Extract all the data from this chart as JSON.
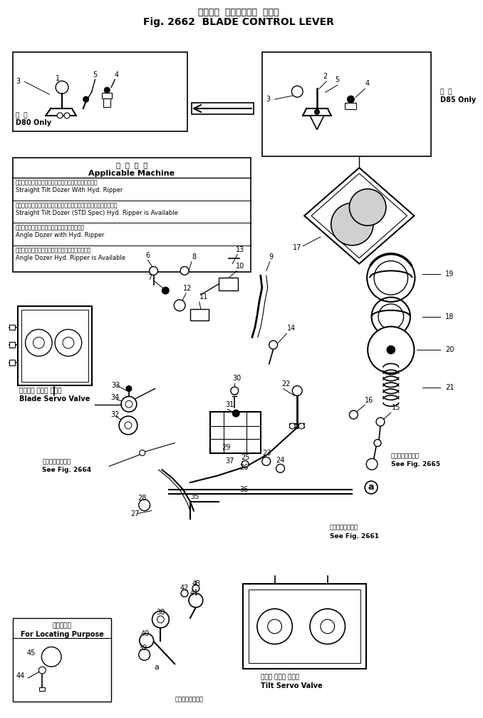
{
  "title_jp": "ブレード  コントロール  レバー",
  "title_en": "Fig. 2662  BLADE CONTROL LEVER",
  "bg_color": "#ffffff",
  "fig_width": 6.78,
  "fig_height": 10.06,
  "dpi": 100,
  "app_header_jp": "適  用  機  種",
  "app_header_en": "Applicable Machine",
  "app_rows": [
    [
      "ストレートチルトドーザハイドロリックリッパー装着車",
      "Straight Tilt Dozer With Hyd. Ripper"
    ],
    [
      "ストレートチルトドーザ標準仕様ハイドロリックリッパー適用可能車",
      "Straight Tilt Dozer (STD.Spec) Hyd. Ripper is Available"
    ],
    [
      "アングルドーザハイドロリックリッパー装着車",
      "Angle Dozer with Hyd. Ripper"
    ],
    [
      "アングルドーザハイドロリックリッパー装着可能車",
      "Angle Dozer Hyd. Ripper is Available"
    ]
  ],
  "d80_jp": "専  用",
  "d80_en": "D80 Only",
  "d85_jp": "専  用",
  "d85_en": "D85 Only",
  "blade_sv_jp": "ブレード サーボ バルブ",
  "blade_sv_en": "Blade Servo Valve",
  "tilt_sv_jp": "チルト サーボ バルブ",
  "tilt_sv_en": "Tilt Servo Valve",
  "fig2664_jp": "第２６６４図参照",
  "fig2664_en": "See Fig. 2664",
  "fig2665_jp": "第２６６５図参照",
  "fig2665_en": "See Fig. 2665",
  "fig2661_jp": "第２６６１図参照",
  "fig2661_en": "See Fig. 2661",
  "fig2655_jp": "第２６５５図参照",
  "for_loc_jp": "位置決め用",
  "for_loc_en": "For Locating Purpose"
}
